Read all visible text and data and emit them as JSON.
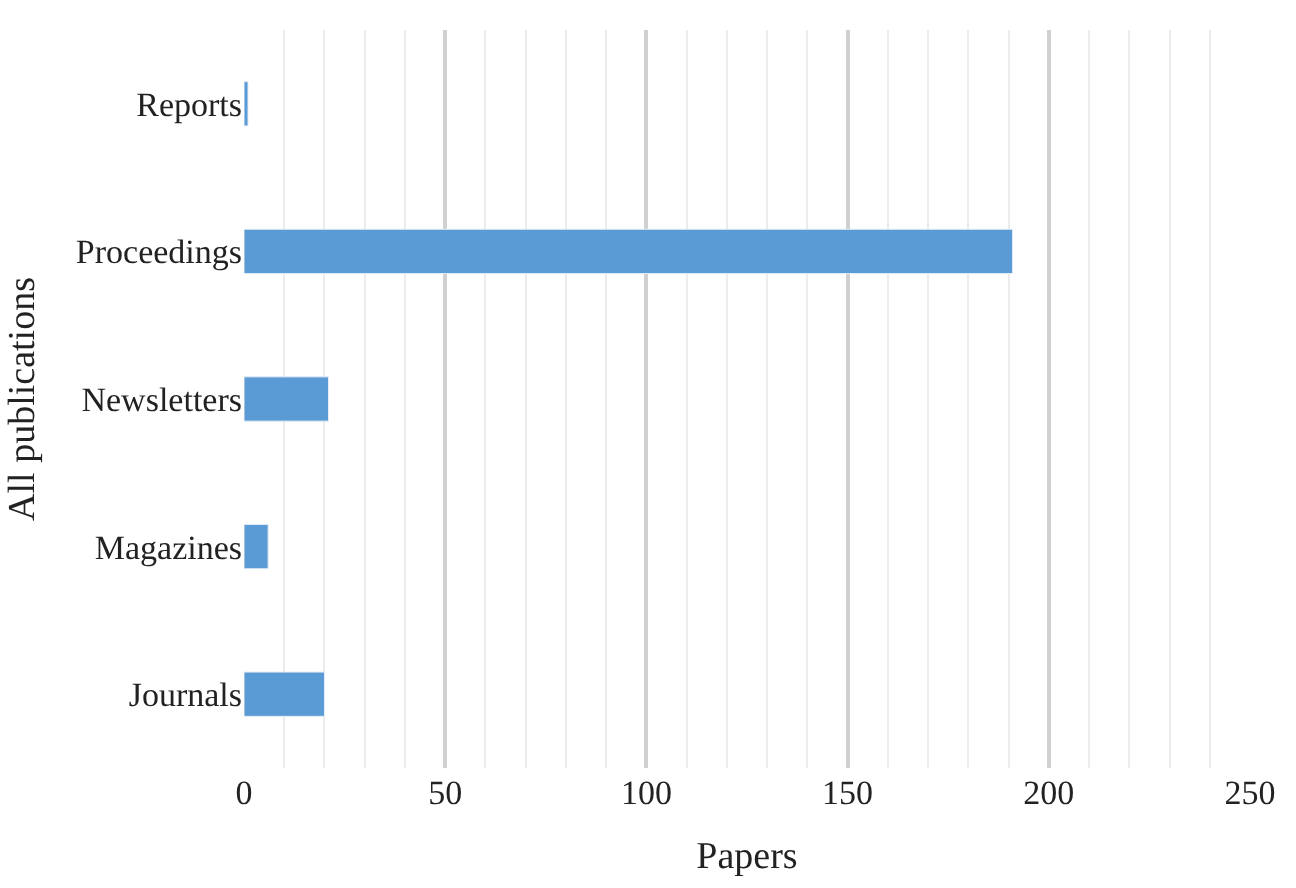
{
  "chart_data": {
    "type": "bar",
    "orientation": "horizontal",
    "xlabel": "Papers",
    "ylabel": "All publications",
    "categories": [
      "Reports",
      "Proceedings",
      "Newsletters",
      "Magazines",
      "Journals"
    ],
    "values": [
      1,
      191,
      21,
      6,
      20
    ],
    "color": "#5b9bd5",
    "xlim": [
      0,
      250
    ],
    "xticks": [
      0,
      50,
      100,
      150,
      200,
      250
    ],
    "grid": "x"
  }
}
